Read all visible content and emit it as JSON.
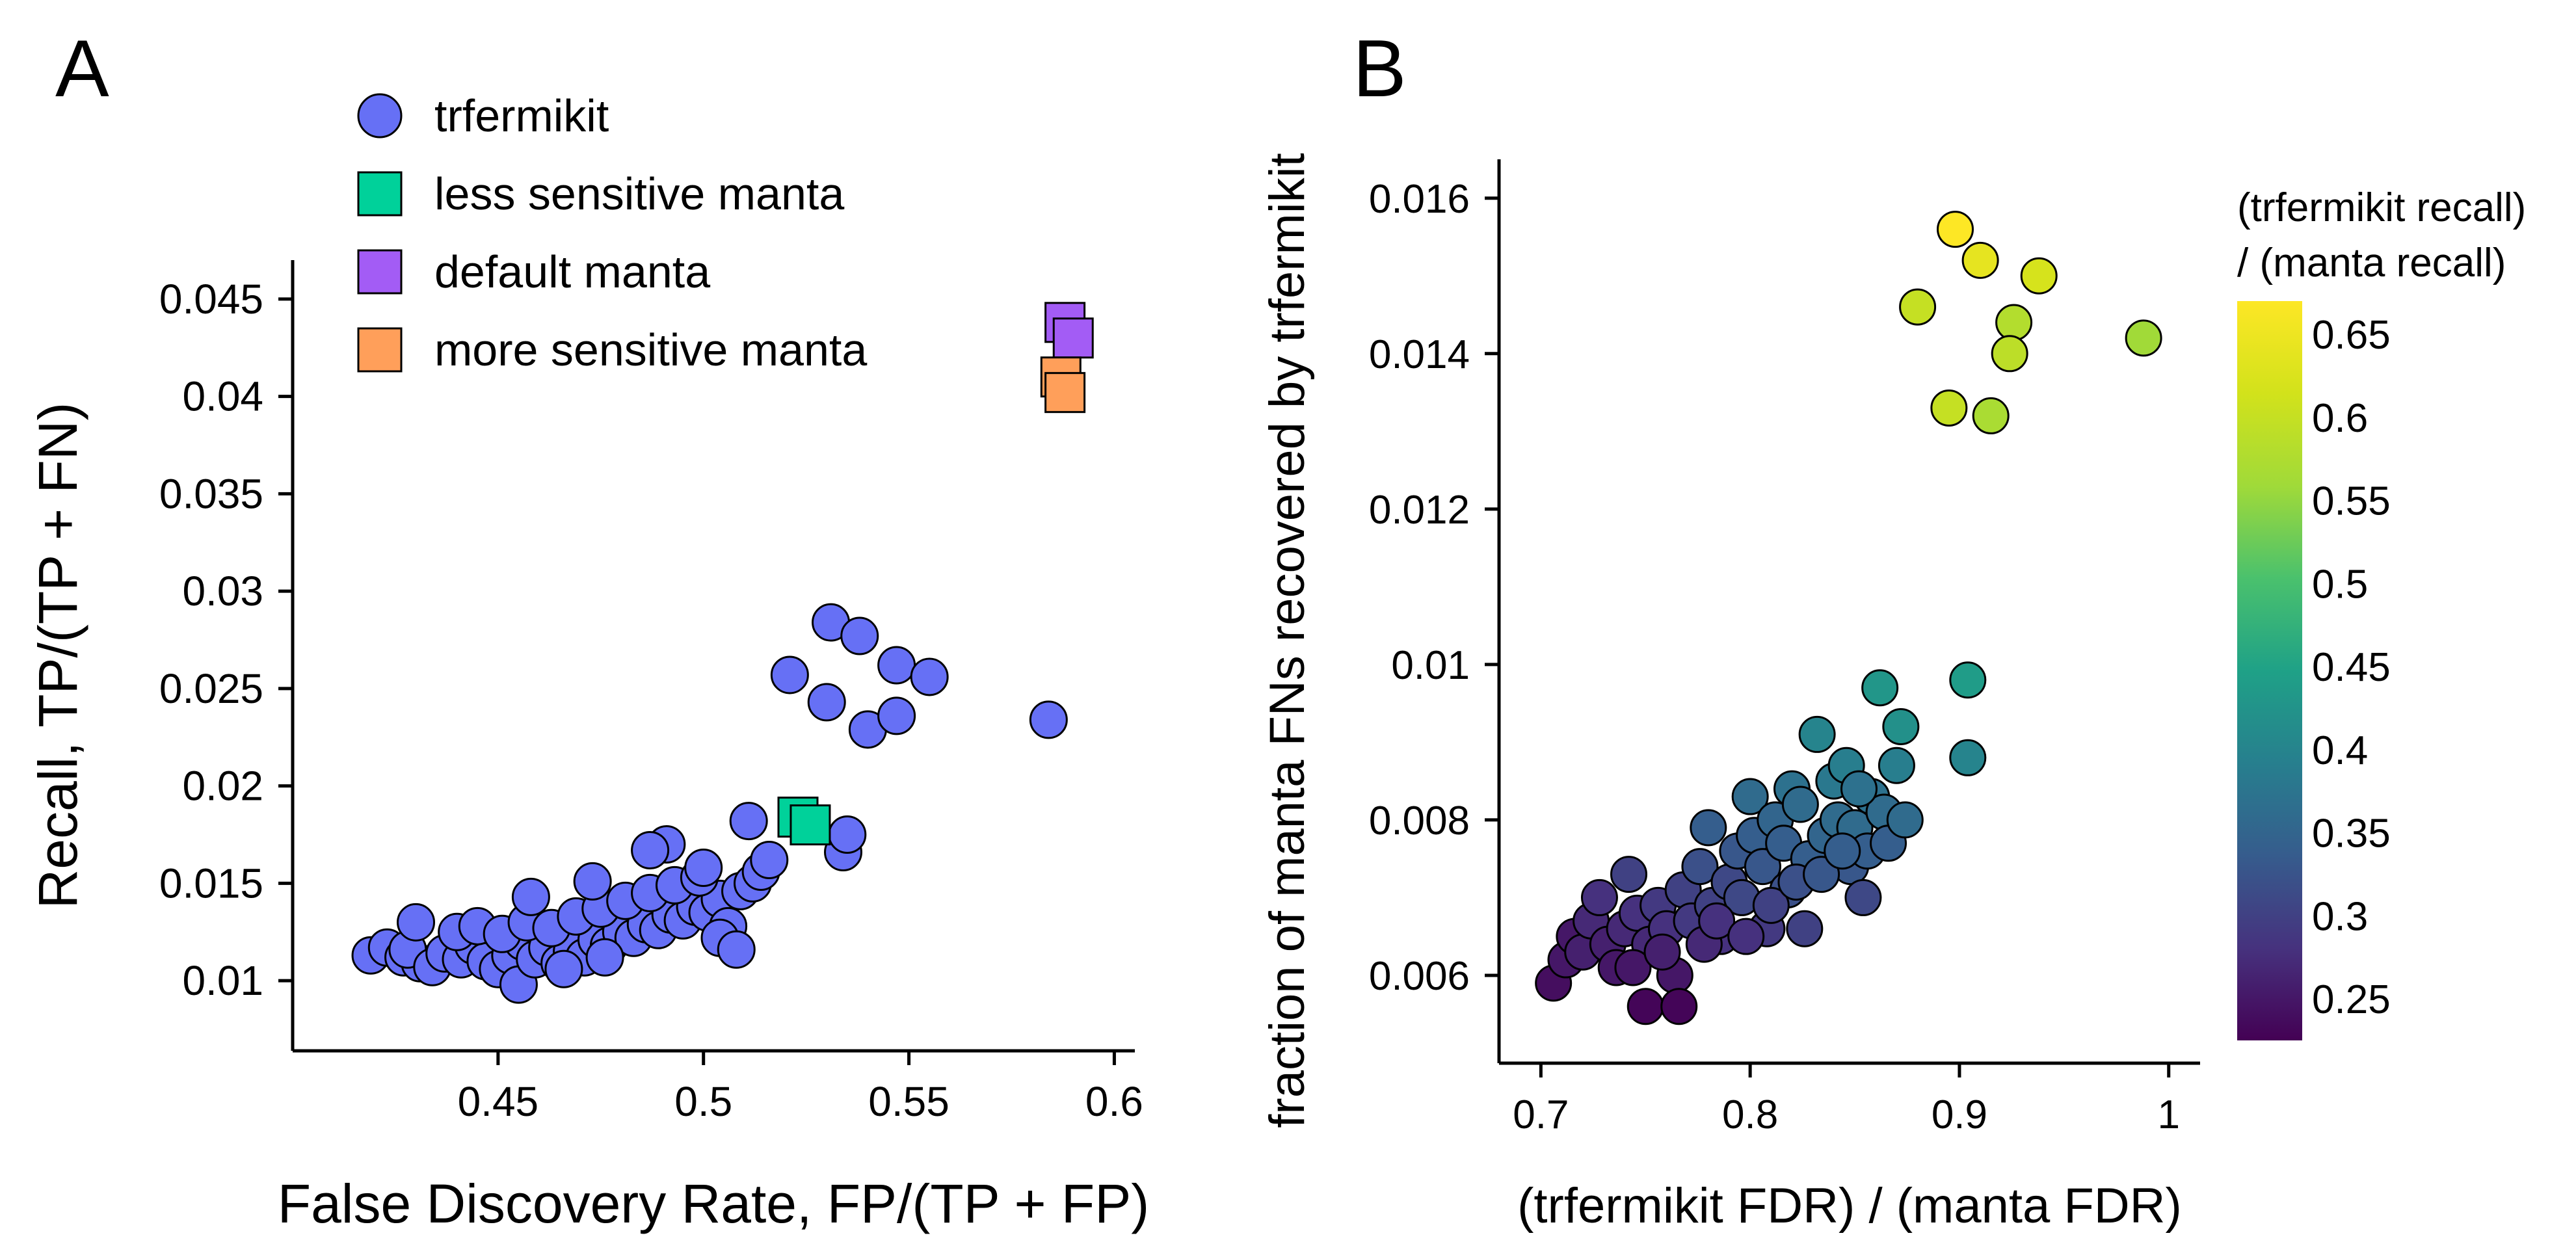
{
  "chart_data": [
    {
      "panel_label": "A",
      "type": "scatter",
      "title": "",
      "xlabel": "False Discovery Rate, FP/(TP + FP)",
      "ylabel": "Recall, TP/(TP + FN)",
      "xlim": [
        0.4,
        0.605
      ],
      "ylim": [
        0.0064,
        0.047
      ],
      "xticks": [
        0.45,
        0.5,
        0.55,
        0.6
      ],
      "xtick_labels": [
        "0.45",
        "0.5",
        "0.55",
        "0.6"
      ],
      "yticks": [
        0.01,
        0.015,
        0.02,
        0.025,
        0.03,
        0.035,
        0.04,
        0.045
      ],
      "ytick_labels": [
        "0.01",
        "0.015",
        "0.02",
        "0.025",
        "0.03",
        "0.035",
        "0.04",
        "0.045"
      ],
      "legend_position": "top-left",
      "series": [
        {
          "name": "trfermikit",
          "marker": "circle",
          "color": "#6670f5",
          "points": [
            [
              0.419,
              0.0113
            ],
            [
              0.423,
              0.0117
            ],
            [
              0.427,
              0.0112
            ],
            [
              0.431,
              0.0109
            ],
            [
              0.428,
              0.0116
            ],
            [
              0.434,
              0.0107
            ],
            [
              0.437,
              0.0114
            ],
            [
              0.441,
              0.0111
            ],
            [
              0.444,
              0.0118
            ],
            [
              0.447,
              0.011
            ],
            [
              0.45,
              0.0106
            ],
            [
              0.453,
              0.0113
            ],
            [
              0.455,
              0.0098
            ],
            [
              0.456,
              0.012
            ],
            [
              0.459,
              0.0111
            ],
            [
              0.462,
              0.0117
            ],
            [
              0.465,
              0.0109
            ],
            [
              0.468,
              0.0115
            ],
            [
              0.471,
              0.0112
            ],
            [
              0.474,
              0.0121
            ],
            [
              0.477,
              0.0118
            ],
            [
              0.48,
              0.0125
            ],
            [
              0.483,
              0.0122
            ],
            [
              0.486,
              0.0129
            ],
            [
              0.489,
              0.0126
            ],
            [
              0.492,
              0.0134
            ],
            [
              0.495,
              0.0131
            ],
            [
              0.498,
              0.0138
            ],
            [
              0.501,
              0.0135
            ],
            [
              0.504,
              0.0142
            ],
            [
              0.506,
              0.0128
            ],
            [
              0.509,
              0.0146
            ],
            [
              0.512,
              0.015
            ],
            [
              0.514,
              0.0156
            ],
            [
              0.516,
              0.0162
            ],
            [
              0.44,
              0.0125
            ],
            [
              0.445,
              0.0128
            ],
            [
              0.451,
              0.0124
            ],
            [
              0.457,
              0.013
            ],
            [
              0.463,
              0.0127
            ],
            [
              0.469,
              0.0133
            ],
            [
              0.475,
              0.0137
            ],
            [
              0.481,
              0.0141
            ],
            [
              0.487,
              0.0145
            ],
            [
              0.493,
              0.0149
            ],
            [
              0.499,
              0.0153
            ],
            [
              0.43,
              0.013
            ],
            [
              0.458,
              0.0143
            ],
            [
              0.473,
              0.0151
            ],
            [
              0.491,
              0.017
            ],
            [
              0.487,
              0.0167
            ],
            [
              0.5,
              0.0158
            ],
            [
              0.511,
              0.0182
            ],
            [
              0.534,
              0.0166
            ],
            [
              0.535,
              0.0175
            ],
            [
              0.476,
              0.0112
            ],
            [
              0.466,
              0.0106
            ],
            [
              0.504,
              0.0122
            ],
            [
              0.508,
              0.0116
            ],
            [
              0.521,
              0.0257
            ],
            [
              0.53,
              0.0243
            ],
            [
              0.531,
              0.0284
            ],
            [
              0.538,
              0.0277
            ],
            [
              0.54,
              0.0229
            ],
            [
              0.547,
              0.0236
            ],
            [
              0.547,
              0.0262
            ],
            [
              0.555,
              0.0256
            ],
            [
              0.584,
              0.0234
            ]
          ]
        },
        {
          "name": "less sensitive manta",
          "marker": "square",
          "color": "#00d19a",
          "points": [
            [
              0.523,
              0.0184
            ],
            [
              0.526,
              0.018
            ]
          ]
        },
        {
          "name": "default manta",
          "marker": "square",
          "color": "#a35cf5",
          "points": [
            [
              0.588,
              0.0438
            ],
            [
              0.59,
              0.043
            ]
          ]
        },
        {
          "name": "more sensitive manta",
          "marker": "square",
          "color": "#ff9f5a",
          "points": [
            [
              0.587,
              0.041
            ],
            [
              0.588,
              0.0402
            ]
          ]
        }
      ]
    },
    {
      "panel_label": "B",
      "type": "scatter",
      "title": "",
      "xlabel": "(trfermikit FDR) / (manta FDR)",
      "ylabel": "fraction of manta FNs recovered by trfermikit",
      "xlim": [
        0.68,
        1.015
      ],
      "ylim": [
        0.00487,
        0.0165
      ],
      "xticks": [
        0.7,
        0.8,
        0.9,
        1
      ],
      "xtick_labels": [
        "0.7",
        "0.8",
        "0.9",
        "1"
      ],
      "yticks": [
        0.006,
        0.008,
        0.01,
        0.012,
        0.014,
        0.016
      ],
      "ytick_labels": [
        "0.006",
        "0.008",
        "0.01",
        "0.012",
        "0.014",
        "0.016"
      ],
      "colorbar": {
        "title_lines": [
          "(trfermikit recall)",
          "/ (manta recall)"
        ],
        "min": 0.225,
        "max": 0.67,
        "ticks": [
          0.25,
          0.3,
          0.35,
          0.4,
          0.45,
          0.5,
          0.55,
          0.6,
          0.65
        ],
        "tick_labels": [
          "0.25",
          "0.3",
          "0.35",
          "0.4",
          "0.45",
          "0.5",
          "0.55",
          "0.6",
          "0.65"
        ],
        "colormap": "viridis"
      },
      "points": [
        [
          0.706,
          0.0059,
          0.24
        ],
        [
          0.712,
          0.0062,
          0.25
        ],
        [
          0.716,
          0.0065,
          0.25
        ],
        [
          0.72,
          0.0063,
          0.26
        ],
        [
          0.724,
          0.0067,
          0.27
        ],
        [
          0.728,
          0.007,
          0.28
        ],
        [
          0.732,
          0.0064,
          0.26
        ],
        [
          0.736,
          0.0061,
          0.25
        ],
        [
          0.74,
          0.0066,
          0.27
        ],
        [
          0.742,
          0.0073,
          0.3
        ],
        [
          0.746,
          0.0068,
          0.28
        ],
        [
          0.75,
          0.0056,
          0.23
        ],
        [
          0.752,
          0.0064,
          0.27
        ],
        [
          0.756,
          0.0069,
          0.29
        ],
        [
          0.76,
          0.0066,
          0.28
        ],
        [
          0.764,
          0.006,
          0.25
        ],
        [
          0.766,
          0.0056,
          0.23
        ],
        [
          0.768,
          0.0071,
          0.3
        ],
        [
          0.772,
          0.0067,
          0.29
        ],
        [
          0.776,
          0.0074,
          0.32
        ],
        [
          0.78,
          0.0079,
          0.34
        ],
        [
          0.782,
          0.0069,
          0.3
        ],
        [
          0.786,
          0.0065,
          0.28
        ],
        [
          0.79,
          0.0072,
          0.31
        ],
        [
          0.794,
          0.0076,
          0.33
        ],
        [
          0.796,
          0.007,
          0.31
        ],
        [
          0.8,
          0.0083,
          0.36
        ],
        [
          0.802,
          0.0078,
          0.34
        ],
        [
          0.806,
          0.0074,
          0.33
        ],
        [
          0.808,
          0.0066,
          0.29
        ],
        [
          0.812,
          0.008,
          0.35
        ],
        [
          0.816,
          0.0077,
          0.34
        ],
        [
          0.818,
          0.0071,
          0.32
        ],
        [
          0.82,
          0.0084,
          0.37
        ],
        [
          0.824,
          0.0082,
          0.36
        ],
        [
          0.826,
          0.0066,
          0.3
        ],
        [
          0.828,
          0.0075,
          0.34
        ],
        [
          0.832,
          0.0091,
          0.4
        ],
        [
          0.836,
          0.0078,
          0.35
        ],
        [
          0.84,
          0.0085,
          0.38
        ],
        [
          0.842,
          0.008,
          0.36
        ],
        [
          0.846,
          0.0087,
          0.39
        ],
        [
          0.848,
          0.0074,
          0.33
        ],
        [
          0.85,
          0.0079,
          0.36
        ],
        [
          0.854,
          0.007,
          0.31
        ],
        [
          0.856,
          0.0076,
          0.34
        ],
        [
          0.858,
          0.0083,
          0.37
        ],
        [
          0.862,
          0.0097,
          0.43
        ],
        [
          0.864,
          0.0081,
          0.36
        ],
        [
          0.866,
          0.0077,
          0.34
        ],
        [
          0.87,
          0.0087,
          0.39
        ],
        [
          0.872,
          0.0092,
          0.42
        ],
        [
          0.874,
          0.008,
          0.36
        ],
        [
          0.904,
          0.0098,
          0.44
        ],
        [
          0.904,
          0.0088,
          0.4
        ],
        [
          0.744,
          0.0061,
          0.25
        ],
        [
          0.758,
          0.0063,
          0.26
        ],
        [
          0.778,
          0.0064,
          0.27
        ],
        [
          0.784,
          0.0067,
          0.28
        ],
        [
          0.798,
          0.0065,
          0.28
        ],
        [
          0.81,
          0.0069,
          0.3
        ],
        [
          0.822,
          0.0072,
          0.32
        ],
        [
          0.834,
          0.0073,
          0.33
        ],
        [
          0.844,
          0.0076,
          0.34
        ],
        [
          0.852,
          0.0084,
          0.37
        ],
        [
          0.898,
          0.0156,
          0.67
        ],
        [
          0.91,
          0.0152,
          0.64
        ],
        [
          0.938,
          0.015,
          0.62
        ],
        [
          0.88,
          0.0146,
          0.6
        ],
        [
          0.926,
          0.0144,
          0.58
        ],
        [
          0.924,
          0.014,
          0.59
        ],
        [
          0.988,
          0.0142,
          0.56
        ],
        [
          0.895,
          0.0133,
          0.6
        ],
        [
          0.915,
          0.0132,
          0.57
        ]
      ]
    }
  ]
}
